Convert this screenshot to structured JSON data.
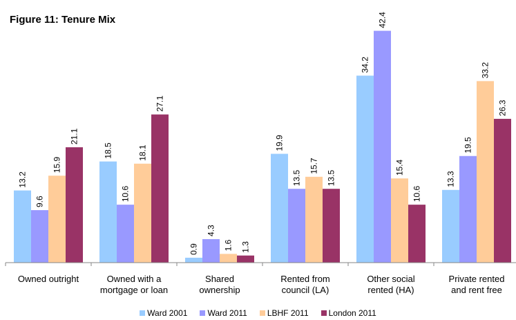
{
  "chart_data": {
    "type": "bar",
    "title": "Figure 11: Tenure Mix",
    "categories": [
      "Owned outright",
      "Owned with a\nmortgage or loan",
      "Shared\nownership",
      "Rented from\ncouncil (LA)",
      "Other social\nrented (HA)",
      "Private rented\nand rent free"
    ],
    "series": [
      {
        "name": "Ward 2001",
        "color": "#99ccff",
        "values": [
          13.2,
          18.5,
          0.9,
          19.9,
          34.2,
          13.3
        ]
      },
      {
        "name": "Ward 2011",
        "color": "#9999ff",
        "values": [
          9.6,
          10.6,
          4.3,
          13.5,
          42.4,
          19.5
        ]
      },
      {
        "name": "LBHF 2011",
        "color": "#ffcc99",
        "values": [
          15.9,
          18.1,
          1.6,
          15.7,
          15.4,
          33.2
        ]
      },
      {
        "name": "London 2011",
        "color": "#993366",
        "values": [
          21.1,
          27.1,
          1.3,
          13.5,
          10.6,
          26.3
        ]
      }
    ],
    "ylim": [
      0,
      45
    ],
    "legend": "bottom"
  }
}
